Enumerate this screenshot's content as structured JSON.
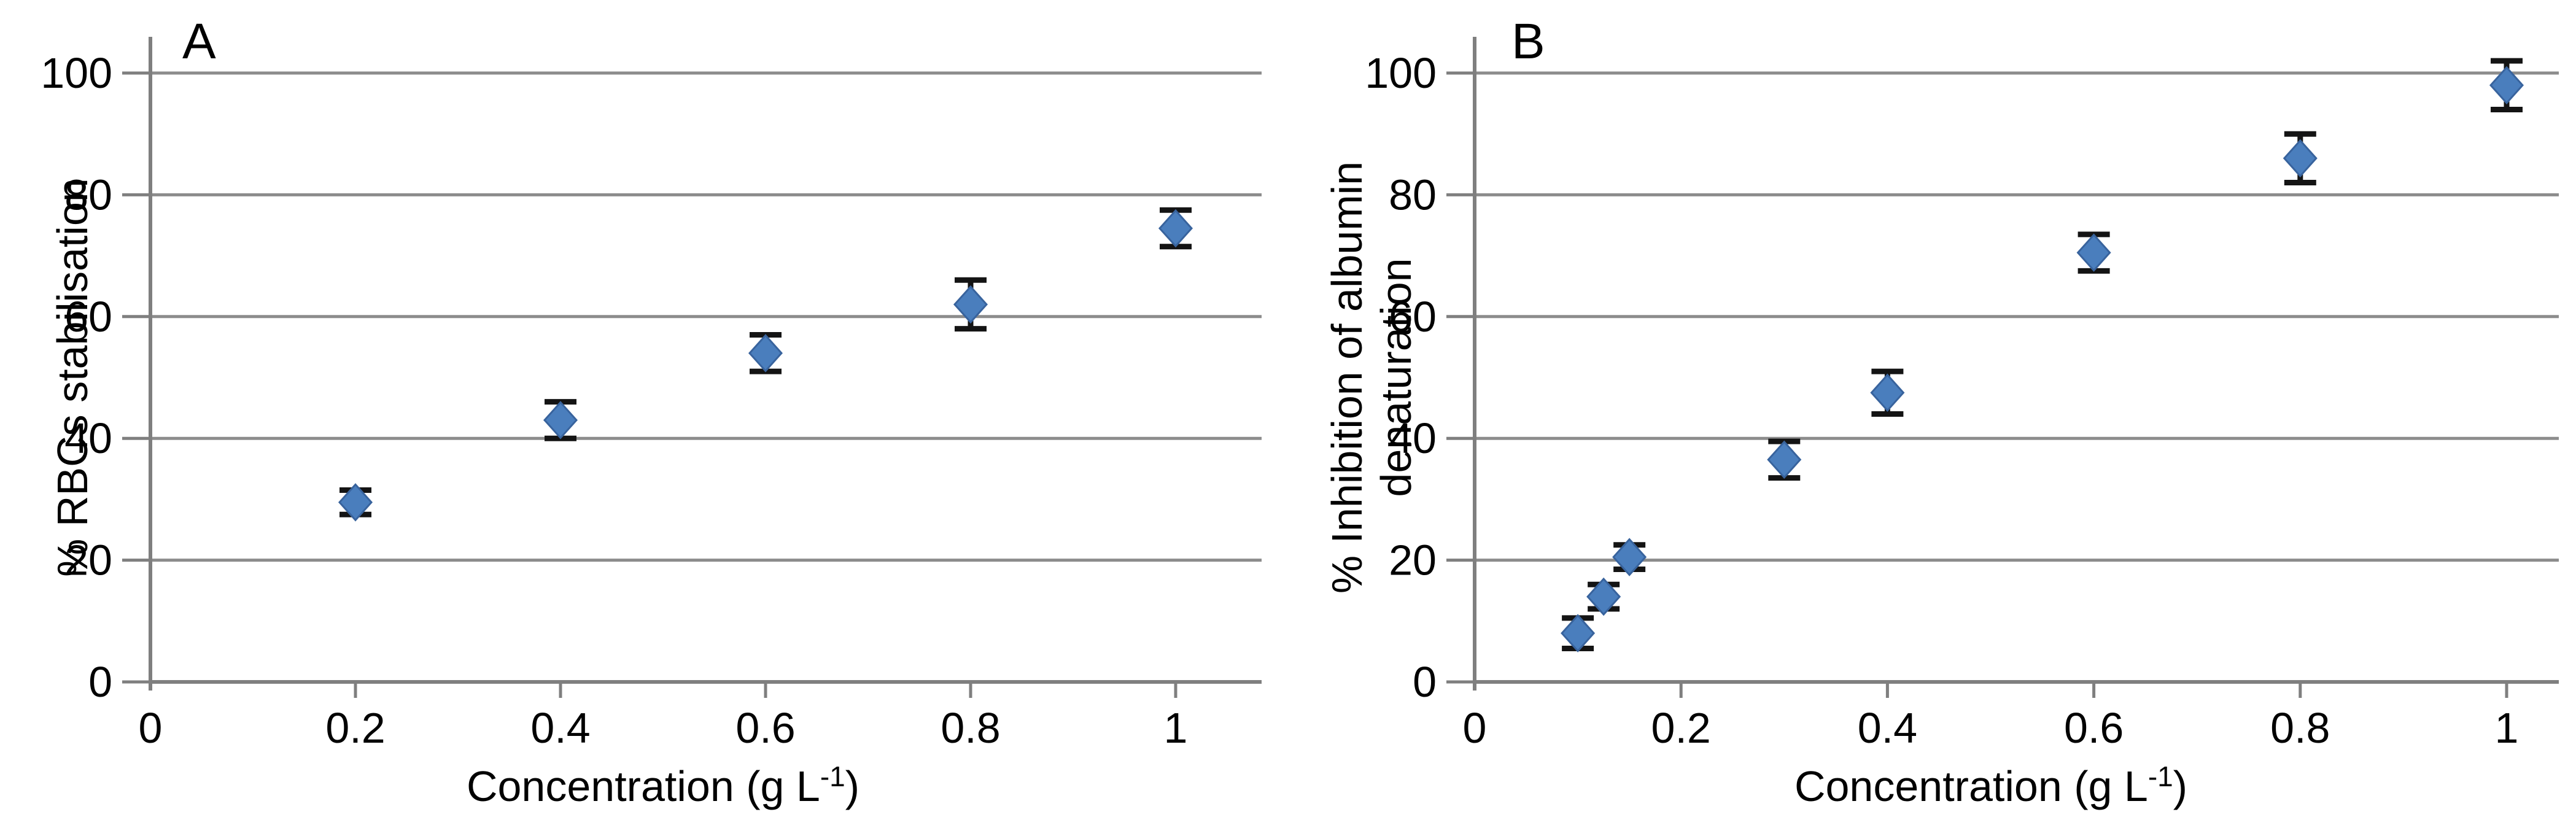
{
  "figure": {
    "background": "#ffffff",
    "panels_count": 2
  },
  "style": {
    "marker_fill": "#4a7ebd",
    "marker_stroke": "#38639d",
    "grid_color": "#8c8c8c",
    "axis_color": "#7f7f7f",
    "error_bar_color": "#141414",
    "text_color": "#000000",
    "background": "#ffffff"
  },
  "chart_data": [
    {
      "panel_label": "A",
      "type": "scatter",
      "title": "",
      "xlabel_prefix": "Concentration (g L",
      "xlabel_superscript": "-1",
      "xlabel_suffix": ")",
      "ylabel_lines": [
        "% RBCs stabilisation"
      ],
      "x_tick_values": [
        0,
        0.2,
        0.4,
        0.6,
        0.8,
        1
      ],
      "x_tick_labels": [
        "0",
        "0.2",
        "0.4",
        "0.6",
        "0.8",
        "1"
      ],
      "y_tick_values": [
        0,
        20,
        40,
        60,
        80,
        100
      ],
      "y_tick_labels": [
        "0",
        "20",
        "40",
        "60",
        "80",
        "100"
      ],
      "xlim": [
        0,
        1.084
      ],
      "ylim": [
        0,
        100
      ],
      "grid": "horizontal",
      "legend": "none",
      "marker": "diamond",
      "series": [
        {
          "name": "% RBCs stabilisation",
          "points": [
            {
              "x": 0.2,
              "y": 29.5,
              "err": 2
            },
            {
              "x": 0.4,
              "y": 43,
              "err": 3
            },
            {
              "x": 0.6,
              "y": 54,
              "err": 3
            },
            {
              "x": 0.8,
              "y": 62,
              "err": 4
            },
            {
              "x": 1.0,
              "y": 74.5,
              "err": 3
            }
          ]
        }
      ]
    },
    {
      "panel_label": "B",
      "type": "scatter",
      "title": "",
      "xlabel_prefix": "Concentration (g L",
      "xlabel_superscript": "-1",
      "xlabel_suffix": ")",
      "ylabel_lines": [
        "% Inhibition of albumin",
        "denaturation"
      ],
      "x_tick_values": [
        0,
        0.2,
        0.4,
        0.6,
        0.8,
        1
      ],
      "x_tick_labels": [
        "0",
        "0.2",
        "0.4",
        "0.6",
        "0.8",
        "1"
      ],
      "y_tick_values": [
        0,
        20,
        40,
        60,
        80,
        100
      ],
      "y_tick_labels": [
        "0",
        "20",
        "40",
        "60",
        "80",
        "100"
      ],
      "xlim": [
        0,
        1.051
      ],
      "ylim": [
        0,
        100
      ],
      "grid": "horizontal",
      "legend": "none",
      "marker": "diamond",
      "series": [
        {
          "name": "% Inhibition of albumin denaturation",
          "points": [
            {
              "x": 0.1,
              "y": 8,
              "err": 2.5
            },
            {
              "x": 0.125,
              "y": 14,
              "err": 2
            },
            {
              "x": 0.15,
              "y": 20.5,
              "err": 2
            },
            {
              "x": 0.3,
              "y": 36.5,
              "err": 3
            },
            {
              "x": 0.4,
              "y": 47.5,
              "err": 3.5
            },
            {
              "x": 0.6,
              "y": 70.5,
              "err": 3
            },
            {
              "x": 0.8,
              "y": 86,
              "err": 4
            },
            {
              "x": 1.0,
              "y": 98,
              "err": 4
            }
          ]
        }
      ]
    }
  ]
}
